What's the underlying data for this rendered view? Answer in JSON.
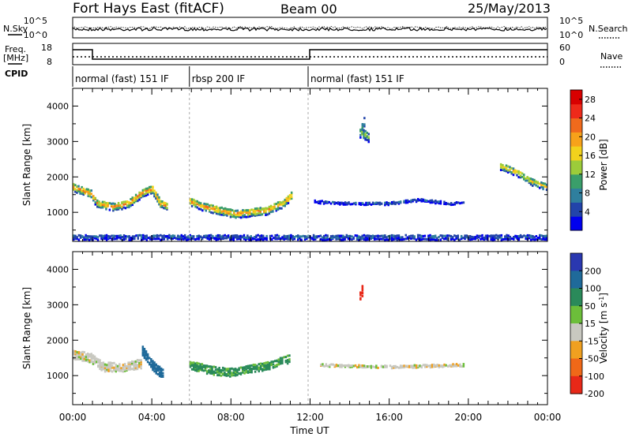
{
  "header": {
    "title": "Fort Hays East (fitACF)",
    "beam": "Beam 00",
    "date": "25/May/2013"
  },
  "status_panels": {
    "nsky_label": "N.Sky",
    "nsearch_label": "N.Search",
    "freq_label": "Freq.",
    "freq_unit": "[MHz]",
    "nave_label": "Nave",
    "cpid_label": "CPID",
    "left_ticks_top": [
      "10^5",
      "10^0"
    ],
    "right_ticks_top": [
      "10^5",
      "10^0"
    ],
    "freq_ticks": [
      "18",
      "8"
    ],
    "nave_ticks": [
      "60",
      "0"
    ]
  },
  "cpid_segments": [
    {
      "label": "normal (fast) 151 IF",
      "start_hour": 0,
      "end_hour": 5.9
    },
    {
      "label": "rbsp 200 IF",
      "start_hour": 5.9,
      "end_hour": 11.9
    },
    {
      "label": "normal (fast) 151 IF",
      "start_hour": 11.9,
      "end_hour": 24
    }
  ],
  "chart_data": [
    {
      "type": "heatmap",
      "name": "power",
      "xlabel": "Time UT",
      "ylabel": "Slant Range [km]",
      "x_range_hours": [
        0,
        24
      ],
      "x_ticks": [
        "00:00",
        "04:00",
        "08:00",
        "12:00",
        "16:00",
        "20:00",
        "00:00"
      ],
      "ylim": [
        180,
        4500
      ],
      "y_ticks": [
        1000,
        2000,
        3000,
        4000
      ],
      "colorbar": {
        "label": "Power [dB]",
        "ticks": [
          "4",
          "8",
          "12",
          "16",
          "20",
          "24",
          "28"
        ],
        "range": [
          0,
          30
        ],
        "colors": [
          "#0000ee",
          "#2244aa",
          "#2f7f9e",
          "#3a9e6a",
          "#9ccc3a",
          "#f2d21c",
          "#f7a21a",
          "#f06a1c",
          "#ee2a1a",
          "#d80000"
        ]
      },
      "features": [
        {
          "desc": "band",
          "points": [
            [
              0.0,
              1700
            ],
            [
              0.5,
              1600
            ],
            [
              0.9,
              1520
            ],
            [
              1.2,
              1250
            ],
            [
              2.0,
              1150
            ],
            [
              2.8,
              1250
            ],
            [
              3.5,
              1550
            ],
            [
              4.0,
              1650
            ],
            [
              4.4,
              1250
            ],
            [
              4.8,
              1150
            ]
          ],
          "width_km": 220,
          "power_db": 22
        },
        {
          "desc": "band",
          "points": [
            [
              5.9,
              1300
            ],
            [
              6.6,
              1150
            ],
            [
              7.4,
              1050
            ],
            [
              8.2,
              950
            ],
            [
              9.0,
              1000
            ],
            [
              9.8,
              1050
            ],
            [
              10.6,
              1250
            ],
            [
              11.1,
              1500
            ]
          ],
          "width_km": 220,
          "power_db": 22
        },
        {
          "desc": "band",
          "points": [
            [
              12.2,
              1300
            ],
            [
              14.0,
              1250
            ],
            [
              16.0,
              1250
            ],
            [
              17.5,
              1350
            ],
            [
              19.0,
              1250
            ],
            [
              19.8,
              1300
            ]
          ],
          "width_km": 70,
          "power_db": 6
        },
        {
          "desc": "band",
          "points": [
            [
              21.6,
              2300
            ],
            [
              22.5,
              2100
            ],
            [
              23.2,
              1850
            ],
            [
              24.0,
              1700
            ]
          ],
          "width_km": 200,
          "power_db": 18
        },
        {
          "desc": "patch",
          "points": [
            [
              14.7,
              3550
            ],
            [
              14.5,
              3250
            ],
            [
              15.0,
              3100
            ]
          ],
          "width_km": 260,
          "power_db": 14
        },
        {
          "desc": "near-range clutter",
          "points": [
            [
              0,
              300
            ],
            [
              24,
              300
            ]
          ],
          "width_km": 140,
          "power_db": 6
        }
      ]
    },
    {
      "type": "heatmap",
      "name": "velocity",
      "xlabel": "Time UT",
      "ylabel": "Slant Range [km]",
      "x_range_hours": [
        0,
        24
      ],
      "x_ticks": [
        "00:00",
        "04:00",
        "08:00",
        "12:00",
        "16:00",
        "20:00",
        "00:00"
      ],
      "ylim": [
        180,
        4500
      ],
      "y_ticks": [
        1000,
        2000,
        3000,
        4000
      ],
      "colorbar": {
        "label": "Velocity [m s^-1]",
        "ticks": [
          "200",
          "100",
          "50",
          "15",
          "-15",
          "-50",
          "-100",
          "-200"
        ],
        "colors": [
          "#2a38b0",
          "#1f6a9a",
          "#2a8a5a",
          "#6cbe3a",
          "#c8c8c0",
          "#f0a020",
          "#f06818",
          "#e82818"
        ]
      },
      "features": [
        {
          "desc": "ground scatter band",
          "points": [
            [
              0.0,
              1600
            ],
            [
              0.9,
              1500
            ],
            [
              1.5,
              1250
            ],
            [
              2.5,
              1250
            ],
            [
              3.5,
              1350
            ]
          ],
          "width_km": 260,
          "velocity": 0
        },
        {
          "desc": "blue cluster",
          "points": [
            [
              3.5,
              1700
            ],
            [
              4.0,
              1300
            ],
            [
              4.6,
              1000
            ]
          ],
          "width_km": 280,
          "velocity": 150
        },
        {
          "desc": "green band",
          "points": [
            [
              5.9,
              1300
            ],
            [
              7.0,
              1150
            ],
            [
              8.0,
              1100
            ],
            [
              9.0,
              1200
            ],
            [
              10.0,
              1300
            ],
            [
              11.0,
              1500
            ]
          ],
          "width_km": 240,
          "velocity": 60
        },
        {
          "desc": "red patch",
          "points": [
            [
              14.6,
              3400
            ],
            [
              14.4,
              3150
            ]
          ],
          "width_km": 300,
          "velocity": -200
        },
        {
          "desc": "grey band",
          "points": [
            [
              12.5,
              1300
            ],
            [
              16.0,
              1250
            ],
            [
              19.8,
              1300
            ]
          ],
          "width_km": 70,
          "velocity": 0
        }
      ]
    }
  ]
}
